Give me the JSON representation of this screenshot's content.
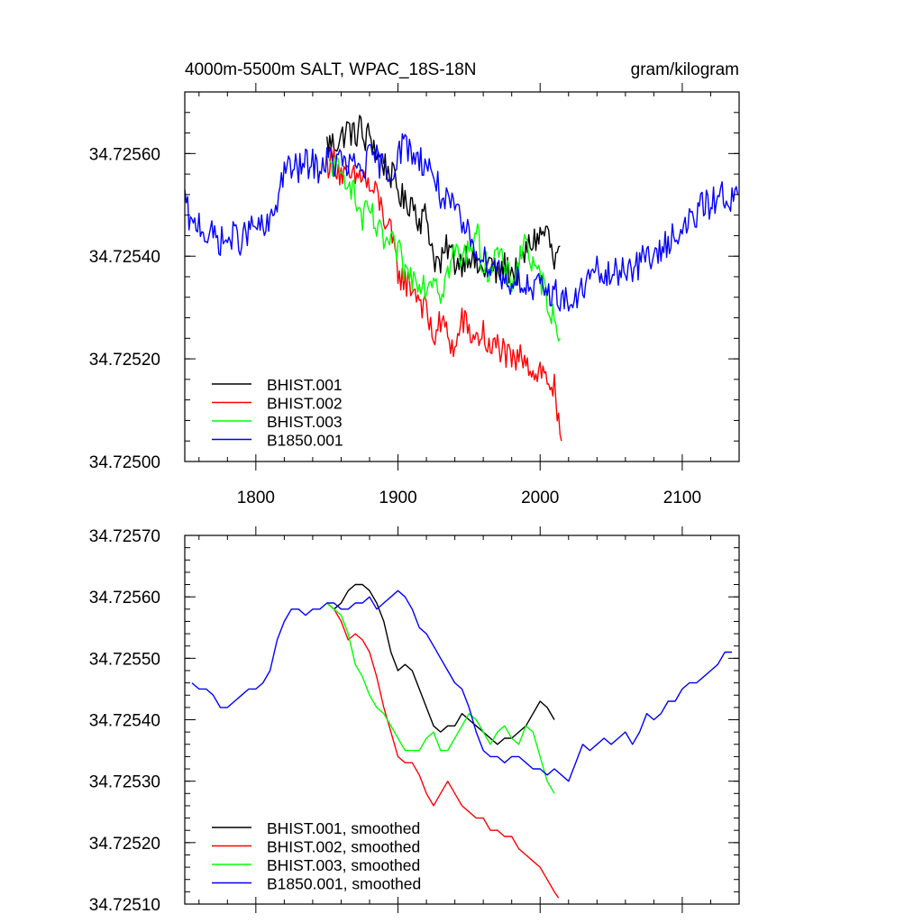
{
  "chart_data": [
    {
      "type": "line",
      "title": "4000m-5500m SALT, WPAC_18S-18N",
      "units": "gram/kilogram",
      "xlabel": "",
      "ylabel": "",
      "xlim": [
        1750,
        2140
      ],
      "ylim": [
        34.725,
        34.72572
      ],
      "xticks": [
        1800,
        1900,
        2000,
        2100
      ],
      "xtick_labels": [
        "1800",
        "1900",
        "2000",
        "2100"
      ],
      "yticks": [
        34.725,
        34.7252,
        34.7254,
        34.7256
      ],
      "ytick_labels": [
        "34.72500",
        "34.72520",
        "34.72540",
        "34.72560"
      ],
      "legend_position": "bottom-left",
      "series": [
        {
          "name": "BHIST.001",
          "color": "#000000",
          "x": [
            1850,
            1855,
            1860,
            1865,
            1870,
            1873,
            1876,
            1880,
            1885,
            1890,
            1895,
            1900,
            1905,
            1910,
            1915,
            1920,
            1925,
            1930,
            1935,
            1940,
            1945,
            1950,
            1955,
            1960,
            1965,
            1970,
            1975,
            1980,
            1985,
            1990,
            1995,
            2000,
            2005,
            2010,
            2014
          ],
          "y": [
            34.72562,
            34.72562,
            34.72563,
            34.72565,
            34.72563,
            34.72566,
            34.72562,
            34.72564,
            34.7256,
            34.72558,
            34.72556,
            34.72553,
            34.7255,
            34.72551,
            34.72547,
            34.72548,
            34.7254,
            34.72538,
            34.72542,
            34.72539,
            34.72539,
            34.72541,
            34.72538,
            34.72537,
            34.72539,
            34.72536,
            34.72538,
            34.72537,
            34.72537,
            34.72541,
            34.72543,
            34.72544,
            34.72545,
            34.72538,
            34.72542
          ]
        },
        {
          "name": "BHIST.002",
          "color": "#ff0000",
          "x": [
            1850,
            1855,
            1860,
            1865,
            1870,
            1875,
            1880,
            1885,
            1890,
            1895,
            1900,
            1905,
            1910,
            1915,
            1920,
            1925,
            1930,
            1935,
            1940,
            1945,
            1950,
            1955,
            1960,
            1965,
            1970,
            1975,
            1980,
            1985,
            1990,
            1995,
            2000,
            2005,
            2010,
            2012,
            2015
          ],
          "y": [
            34.72558,
            34.72559,
            34.72556,
            34.72555,
            34.72555,
            34.72556,
            34.72553,
            34.72552,
            34.72548,
            34.72544,
            34.72537,
            34.72535,
            34.72534,
            34.72532,
            34.72529,
            34.72524,
            34.72527,
            34.72525,
            34.72521,
            34.72528,
            34.72525,
            34.72524,
            34.72525,
            34.72521,
            34.72523,
            34.72521,
            34.72519,
            34.7252,
            34.72521,
            34.72517,
            34.72518,
            34.72516,
            34.72514,
            34.72508,
            34.72504
          ]
        },
        {
          "name": "BHIST.003",
          "color": "#00ff00",
          "x": [
            1850,
            1855,
            1860,
            1865,
            1870,
            1875,
            1880,
            1885,
            1890,
            1895,
            1900,
            1905,
            1910,
            1915,
            1920,
            1925,
            1930,
            1935,
            1940,
            1945,
            1950,
            1955,
            1960,
            1965,
            1970,
            1975,
            1980,
            1985,
            1990,
            1995,
            2000,
            2005,
            2010,
            2014
          ],
          "y": [
            34.72558,
            34.72558,
            34.72555,
            34.72556,
            34.72551,
            34.72547,
            34.72549,
            34.72545,
            34.72543,
            34.72542,
            34.72541,
            34.72537,
            34.72536,
            34.72536,
            34.72534,
            34.72537,
            34.72533,
            34.72537,
            34.72541,
            34.72539,
            34.72542,
            34.72545,
            34.72538,
            34.72538,
            34.72541,
            34.72537,
            34.72535,
            34.72539,
            34.72544,
            34.72537,
            34.72536,
            34.72532,
            34.72527,
            34.72524
          ]
        },
        {
          "name": "B1850.001",
          "color": "#0000ff",
          "x": [
            1750,
            1755,
            1760,
            1765,
            1770,
            1775,
            1780,
            1785,
            1790,
            1795,
            1800,
            1805,
            1810,
            1815,
            1820,
            1825,
            1830,
            1835,
            1840,
            1845,
            1850,
            1855,
            1860,
            1865,
            1870,
            1875,
            1880,
            1885,
            1890,
            1895,
            1900,
            1905,
            1910,
            1915,
            1920,
            1925,
            1930,
            1935,
            1940,
            1945,
            1950,
            1955,
            1960,
            1965,
            1970,
            1975,
            1980,
            1985,
            1990,
            1995,
            2000,
            2005,
            2010,
            2015,
            2020,
            2025,
            2030,
            2035,
            2040,
            2045,
            2050,
            2055,
            2060,
            2065,
            2070,
            2075,
            2080,
            2085,
            2090,
            2095,
            2100,
            2105,
            2110,
            2115,
            2120,
            2125,
            2130,
            2135,
            2139
          ],
          "y": [
            34.72551,
            34.72545,
            34.72547,
            34.72544,
            34.72544,
            34.72543,
            34.72543,
            34.72544,
            34.72543,
            34.72545,
            34.72546,
            34.72545,
            34.72546,
            34.72551,
            34.72557,
            34.72557,
            34.72557,
            34.72558,
            34.72558,
            34.72557,
            34.72559,
            34.72558,
            34.72559,
            34.72557,
            34.72558,
            34.72557,
            34.72559,
            34.72559,
            34.72557,
            34.72556,
            34.7256,
            34.72562,
            34.7256,
            34.72559,
            34.72558,
            34.72556,
            34.72552,
            34.7255,
            34.72549,
            34.72546,
            34.72544,
            34.72542,
            34.72539,
            34.72539,
            34.72538,
            34.72535,
            34.72535,
            34.72536,
            34.72534,
            34.72533,
            34.72534,
            34.72533,
            34.72533,
            34.72532,
            34.72531,
            34.72531,
            34.72534,
            34.72536,
            34.72537,
            34.72536,
            34.72536,
            34.72537,
            34.72538,
            34.72538,
            34.72538,
            34.72541,
            34.72539,
            34.72541,
            34.72543,
            34.72545,
            34.72544,
            34.72547,
            34.72548,
            34.7255,
            34.7255,
            34.72552,
            34.72552,
            34.72551,
            34.72552
          ]
        }
      ]
    },
    {
      "type": "line",
      "title": "",
      "xlabel": "",
      "ylabel": "",
      "xlim": [
        1750,
        2140
      ],
      "ylim": [
        34.7251,
        34.7257
      ],
      "xticks": [
        1800,
        1900,
        2000,
        2100
      ],
      "yticks": [
        34.7251,
        34.7252,
        34.7253,
        34.7254,
        34.7255,
        34.7256,
        34.7257
      ],
      "ytick_labels": [
        "34.72510",
        "34.72520",
        "34.72530",
        "34.72540",
        "34.72550",
        "34.72560",
        "34.72570"
      ],
      "legend_position": "bottom-left",
      "series": [
        {
          "name": "BHIST.001, smoothed",
          "color": "#000000",
          "x": [
            1850,
            1855,
            1860,
            1865,
            1870,
            1875,
            1880,
            1885,
            1890,
            1895,
            1900,
            1905,
            1910,
            1915,
            1920,
            1925,
            1930,
            1935,
            1940,
            1945,
            1950,
            1955,
            1960,
            1965,
            1970,
            1975,
            1980,
            1985,
            1990,
            1995,
            2000,
            2005,
            2010
          ],
          "y": [
            34.72559,
            34.72558,
            34.72559,
            34.72561,
            34.72562,
            34.72562,
            34.72561,
            34.72559,
            34.72556,
            34.72551,
            34.72548,
            34.72549,
            34.72548,
            34.72545,
            34.72542,
            34.72539,
            34.72538,
            34.72539,
            34.72539,
            34.72541,
            34.7254,
            34.72539,
            34.72538,
            34.72537,
            34.72536,
            34.72537,
            34.72537,
            34.72538,
            34.72539,
            34.72541,
            34.72543,
            34.72542,
            34.7254
          ]
        },
        {
          "name": "BHIST.002, smoothed",
          "color": "#ff0000",
          "x": [
            1850,
            1855,
            1860,
            1865,
            1870,
            1875,
            1880,
            1885,
            1890,
            1895,
            1900,
            1905,
            1910,
            1915,
            1920,
            1925,
            1930,
            1935,
            1940,
            1945,
            1950,
            1955,
            1960,
            1965,
            1970,
            1975,
            1980,
            1985,
            1990,
            1995,
            2000,
            2005,
            2010,
            2013
          ],
          "y": [
            34.72559,
            34.72558,
            34.72556,
            34.72553,
            34.72554,
            34.72553,
            34.72551,
            34.72547,
            34.72542,
            34.72538,
            34.72534,
            34.72533,
            34.72533,
            34.72531,
            34.72528,
            34.72526,
            34.72528,
            34.7253,
            34.72528,
            34.72526,
            34.72525,
            34.72524,
            34.72524,
            34.72522,
            34.72522,
            34.72521,
            34.72521,
            34.72519,
            34.72518,
            34.72517,
            34.72516,
            34.72514,
            34.72512,
            34.72511
          ]
        },
        {
          "name": "BHIST.003, smoothed",
          "color": "#00ff00",
          "x": [
            1850,
            1855,
            1860,
            1865,
            1870,
            1875,
            1880,
            1885,
            1890,
            1895,
            1900,
            1905,
            1910,
            1915,
            1920,
            1925,
            1930,
            1935,
            1940,
            1945,
            1950,
            1955,
            1960,
            1965,
            1970,
            1975,
            1980,
            1985,
            1990,
            1995,
            2000,
            2005,
            2010
          ],
          "y": [
            34.72559,
            34.72558,
            34.72557,
            34.72554,
            34.72549,
            34.72547,
            34.72544,
            34.72542,
            34.72541,
            34.72539,
            34.72537,
            34.72535,
            34.72535,
            34.72535,
            34.72537,
            34.72538,
            34.72535,
            34.72535,
            34.72537,
            34.72539,
            34.72541,
            34.7254,
            34.72538,
            34.72536,
            34.72538,
            34.72539,
            34.72537,
            34.72536,
            34.72539,
            34.72538,
            34.72534,
            34.7253,
            34.72528
          ]
        },
        {
          "name": "B1850.001, smoothed",
          "color": "#0000ff",
          "x": [
            1755,
            1760,
            1765,
            1770,
            1775,
            1780,
            1785,
            1790,
            1795,
            1800,
            1805,
            1810,
            1815,
            1820,
            1825,
            1830,
            1835,
            1840,
            1845,
            1850,
            1855,
            1860,
            1865,
            1870,
            1875,
            1880,
            1885,
            1890,
            1895,
            1900,
            1905,
            1910,
            1915,
            1920,
            1925,
            1930,
            1935,
            1940,
            1945,
            1950,
            1955,
            1960,
            1965,
            1970,
            1975,
            1980,
            1985,
            1990,
            1995,
            2000,
            2005,
            2010,
            2015,
            2020,
            2025,
            2030,
            2035,
            2040,
            2045,
            2050,
            2055,
            2060,
            2065,
            2070,
            2075,
            2080,
            2085,
            2090,
            2095,
            2100,
            2105,
            2110,
            2115,
            2120,
            2125,
            2130,
            2135
          ],
          "y": [
            34.72546,
            34.72545,
            34.72545,
            34.72544,
            34.72542,
            34.72542,
            34.72543,
            34.72544,
            34.72545,
            34.72545,
            34.72546,
            34.72548,
            34.72553,
            34.72556,
            34.72558,
            34.72558,
            34.72557,
            34.72558,
            34.72558,
            34.72559,
            34.72559,
            34.72558,
            34.72558,
            34.72559,
            34.72559,
            34.7256,
            34.72558,
            34.72559,
            34.7256,
            34.72561,
            34.7256,
            34.72558,
            34.72555,
            34.72554,
            34.72552,
            34.7255,
            34.72548,
            34.72546,
            34.72545,
            34.72542,
            34.72538,
            34.72535,
            34.72534,
            34.72534,
            34.72533,
            34.72534,
            34.72534,
            34.72533,
            34.72532,
            34.72532,
            34.72531,
            34.72532,
            34.72531,
            34.7253,
            34.72533,
            34.72536,
            34.72535,
            34.72536,
            34.72537,
            34.72536,
            34.72537,
            34.72538,
            34.72536,
            34.72538,
            34.72541,
            34.7254,
            34.72541,
            34.72543,
            34.72543,
            34.72545,
            34.72546,
            34.72546,
            34.72547,
            34.72548,
            34.72549,
            34.72551,
            34.72551
          ]
        }
      ]
    }
  ]
}
